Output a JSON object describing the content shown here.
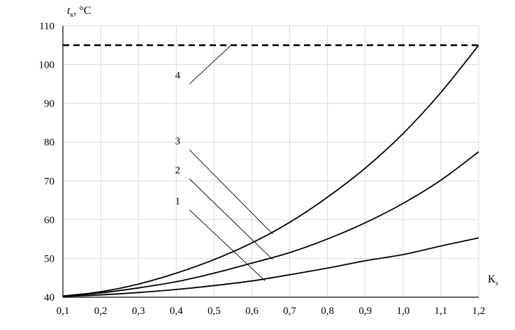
{
  "chart_data": {
    "type": "line",
    "ylabel_main": "t",
    "ylabel_sub": "к",
    "ylabel_unit": ", °C",
    "xlabel_main": "К",
    "xlabel_sub": "з",
    "xlim": [
      0.1,
      1.2
    ],
    "ylim": [
      40,
      110
    ],
    "grid": true,
    "x_ticks": [
      "0,1",
      "0,2",
      "0,3",
      "0,4",
      "0,5",
      "0,6",
      "0,7",
      "0,8",
      "0,9",
      "1,0",
      "1,1",
      "1,2"
    ],
    "y_ticks": [
      "40",
      "50",
      "60",
      "70",
      "80",
      "90",
      "100",
      "110"
    ],
    "x": [
      0.1,
      0.2,
      0.3,
      0.4,
      0.5,
      0.6,
      0.7,
      0.8,
      0.9,
      1.0,
      1.1,
      1.2
    ],
    "series": [
      {
        "name": "1",
        "style": "solid",
        "values": [
          40.2,
          40.6,
          41.2,
          42.0,
          43.0,
          44.2,
          45.8,
          47.5,
          49.4,
          51.0,
          53.2,
          55.3
        ]
      },
      {
        "name": "2",
        "style": "solid",
        "values": [
          40.3,
          41.1,
          42.4,
          44.0,
          46.2,
          48.8,
          51.5,
          55.0,
          59.2,
          64.2,
          70.2,
          77.5
        ]
      },
      {
        "name": "3",
        "style": "solid",
        "values": [
          40.3,
          41.4,
          43.4,
          46.2,
          49.7,
          54.0,
          59.3,
          65.8,
          73.3,
          82.2,
          92.8,
          105.0
        ]
      },
      {
        "name": "4",
        "style": "dashed",
        "values": [
          105,
          105,
          105,
          105,
          105,
          105,
          105,
          105,
          105,
          105,
          105,
          105
        ]
      }
    ],
    "annotations": [
      {
        "text": "1",
        "label_x": 0.435,
        "label_y": 62.5,
        "target_x": 0.635,
        "target_y": 44.2
      },
      {
        "text": "2",
        "label_x": 0.435,
        "label_y": 70.5,
        "target_x": 0.655,
        "target_y": 49.7
      },
      {
        "text": "3",
        "label_x": 0.435,
        "label_y": 78.0,
        "target_x": 0.655,
        "target_y": 56.3
      },
      {
        "text": "4",
        "label_x": 0.435,
        "label_y": 95.0,
        "target_x": 0.545,
        "target_y": 105.0
      }
    ]
  }
}
